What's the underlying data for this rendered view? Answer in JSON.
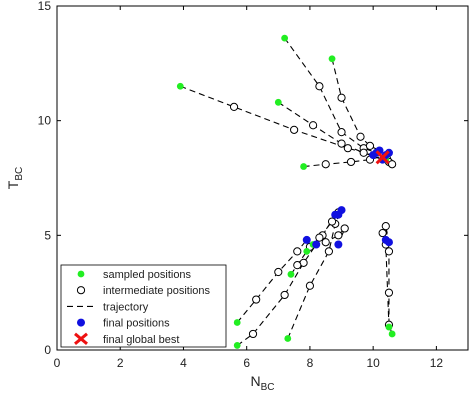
{
  "chart_data": {
    "type": "scatter",
    "title": "",
    "xlabel": "N",
    "xlabel_sub": "BC",
    "ylabel": "T",
    "ylabel_sub": "BC",
    "xlim": [
      0,
      13
    ],
    "ylim": [
      0,
      15
    ],
    "xticks": [
      "0",
      "2",
      "4",
      "6",
      "8",
      "10",
      "12"
    ],
    "yticks": [
      "0",
      "5",
      "10",
      "15"
    ],
    "grid": false,
    "legend_position": "bottom-left",
    "legend": [
      {
        "label": "sampled positions",
        "style": "green-dot"
      },
      {
        "label": "intermediate positions",
        "style": "open-circle"
      },
      {
        "label": "trajectory",
        "style": "dashed-line"
      },
      {
        "label": "final positions",
        "style": "blue-dot"
      },
      {
        "label": "final global best",
        "style": "red-x"
      }
    ],
    "colors": {
      "sampled": "#22ee22",
      "intermediate": "#000000",
      "trajectory": "#000000",
      "final": "#1010e0",
      "global_best": "#ee1111"
    },
    "trajectories": [
      {
        "sampled": [
          7.2,
          13.6
        ],
        "intermediate": [
          [
            8.3,
            11.5
          ],
          [
            9.0,
            9.5
          ],
          [
            9.7,
            8.8
          ]
        ],
        "final": [
          10.1,
          8.6
        ]
      },
      {
        "sampled": [
          8.7,
          12.7
        ],
        "intermediate": [
          [
            9.0,
            11.0
          ],
          [
            9.6,
            9.3
          ],
          [
            9.9,
            8.9
          ]
        ],
        "final": [
          10.2,
          8.7
        ]
      },
      {
        "sampled": [
          3.9,
          11.5
        ],
        "intermediate": [
          [
            5.6,
            10.6
          ],
          [
            7.5,
            9.6
          ],
          [
            9.2,
            8.8
          ]
        ],
        "final": [
          10.0,
          8.5
        ]
      },
      {
        "sampled": [
          7.0,
          10.8
        ],
        "intermediate": [
          [
            8.1,
            9.8
          ],
          [
            9.0,
            9.0
          ],
          [
            9.7,
            8.6
          ]
        ],
        "final": [
          10.3,
          8.3
        ]
      },
      {
        "sampled": [
          7.8,
          8.0
        ],
        "intermediate": [
          [
            8.5,
            8.1
          ],
          [
            9.3,
            8.2
          ],
          [
            9.9,
            8.3
          ]
        ],
        "final": [
          10.4,
          8.5
        ]
      },
      {
        "sampled": [
          10.4,
          8.3
        ],
        "intermediate": [
          [
            10.5,
            8.2
          ],
          [
            10.6,
            8.1
          ]
        ],
        "final": [
          10.5,
          8.6
        ]
      },
      {
        "sampled": [
          5.7,
          1.2
        ],
        "intermediate": [
          [
            6.3,
            2.2
          ],
          [
            7.0,
            3.4
          ],
          [
            7.6,
            4.3
          ]
        ],
        "final": [
          7.9,
          4.8
        ]
      },
      {
        "sampled": [
          5.7,
          0.2
        ],
        "intermediate": [
          [
            6.2,
            0.7
          ],
          [
            7.2,
            2.4
          ],
          [
            7.8,
            3.8
          ]
        ],
        "final": [
          8.2,
          4.6
        ]
      },
      {
        "sampled": [
          7.4,
          3.3
        ],
        "intermediate": [
          [
            7.6,
            3.7
          ],
          [
            8.0,
            4.5
          ],
          [
            8.4,
            5.0
          ]
        ],
        "final": [
          8.8,
          5.9
        ]
      },
      {
        "sampled": [
          7.3,
          0.5
        ],
        "intermediate": [
          [
            8.0,
            2.8
          ],
          [
            8.6,
            4.3
          ],
          [
            8.8,
            5.5
          ]
        ],
        "final": [
          9.0,
          6.1
        ]
      },
      {
        "sampled": [
          7.9,
          4.3
        ],
        "intermediate": [
          [
            8.3,
            4.9
          ],
          [
            8.7,
            5.6
          ],
          [
            8.9,
            6.0
          ]
        ],
        "final": [
          8.9,
          5.9
        ]
      },
      {
        "sampled": [
          8.1,
          4.6
        ],
        "intermediate": [
          [
            8.5,
            4.7
          ],
          [
            8.9,
            5.0
          ],
          [
            9.1,
            5.3
          ]
        ],
        "final": [
          8.9,
          4.6
        ]
      },
      {
        "sampled": [
          10.6,
          0.7
        ],
        "intermediate": [
          [
            10.5,
            1.1
          ],
          [
            10.5,
            2.5
          ],
          [
            10.5,
            4.3
          ],
          [
            10.4,
            5.4
          ]
        ],
        "final": [
          10.5,
          4.7
        ]
      },
      {
        "sampled": [
          10.5,
          1.0
        ],
        "intermediate": [
          [
            10.4,
            4.6
          ],
          [
            10.3,
            5.1
          ]
        ],
        "final": [
          10.4,
          4.8
        ]
      }
    ],
    "global_best": [
      10.3,
      8.4
    ]
  }
}
